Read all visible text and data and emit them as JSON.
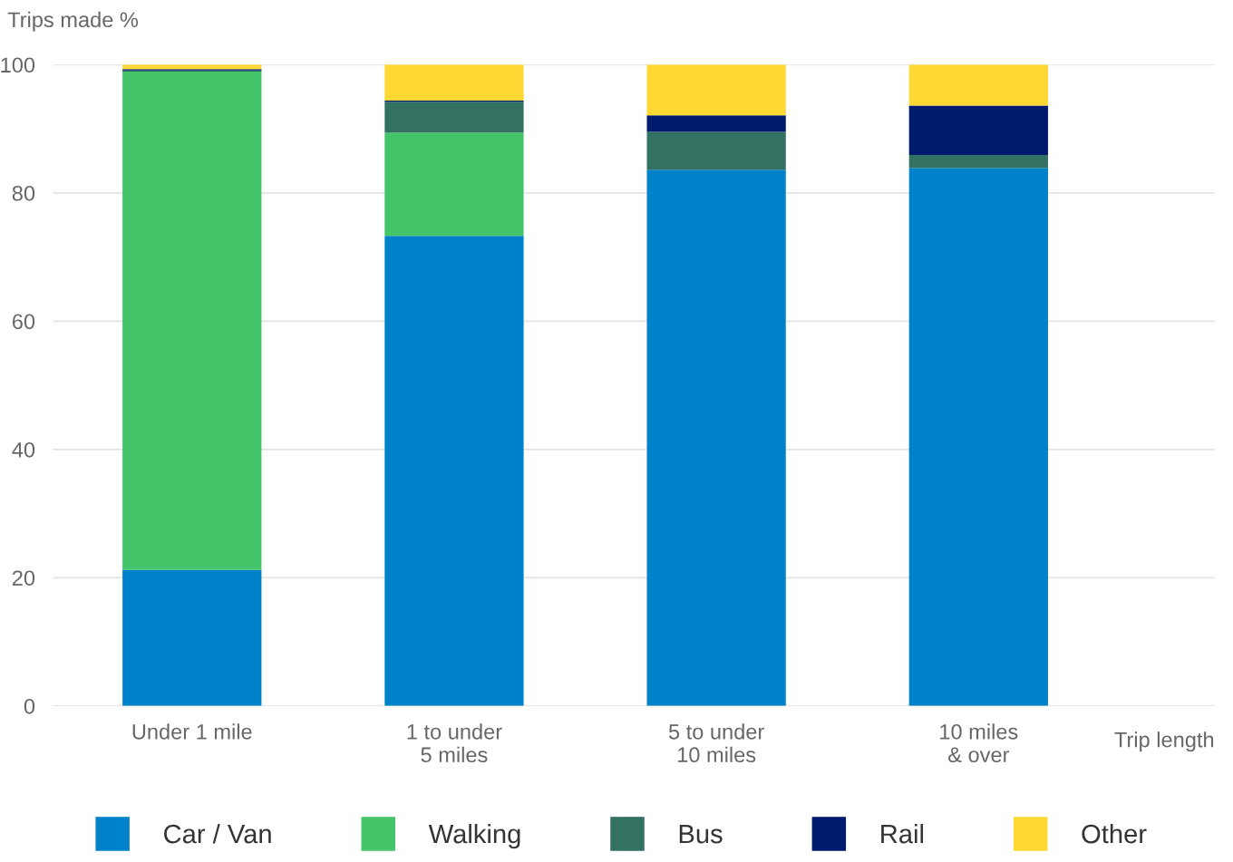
{
  "chart_data": {
    "type": "bar",
    "stacked": true,
    "ylabel": "Trips made %",
    "xlabel": "Trip length",
    "categories": [
      "Under 1 mile",
      "1 to under\n5 miles",
      "5 to under\n10 miles",
      "10 miles\n& over"
    ],
    "series": [
      {
        "name": "Car / Van",
        "color": "#0082ca",
        "values": [
          21.2,
          73.3,
          83.6,
          83.9
        ]
      },
      {
        "name": "Walking",
        "color": "#44c569",
        "values": [
          77.7,
          16.1,
          0,
          0
        ]
      },
      {
        "name": "Bus",
        "color": "#337263",
        "values": [
          0.2,
          4.8,
          5.9,
          2.0
        ]
      },
      {
        "name": "Rail",
        "color": "#001a6e",
        "values": [
          0.2,
          0.2,
          2.6,
          7.7
        ]
      },
      {
        "name": "Other",
        "color": "#ffd833",
        "values": [
          0.7,
          5.6,
          7.9,
          6.4
        ]
      }
    ],
    "ylim": [
      0,
      100
    ],
    "yticks": [
      0,
      20,
      40,
      60,
      80,
      100
    ],
    "grid": "y",
    "legend": "bottom"
  }
}
